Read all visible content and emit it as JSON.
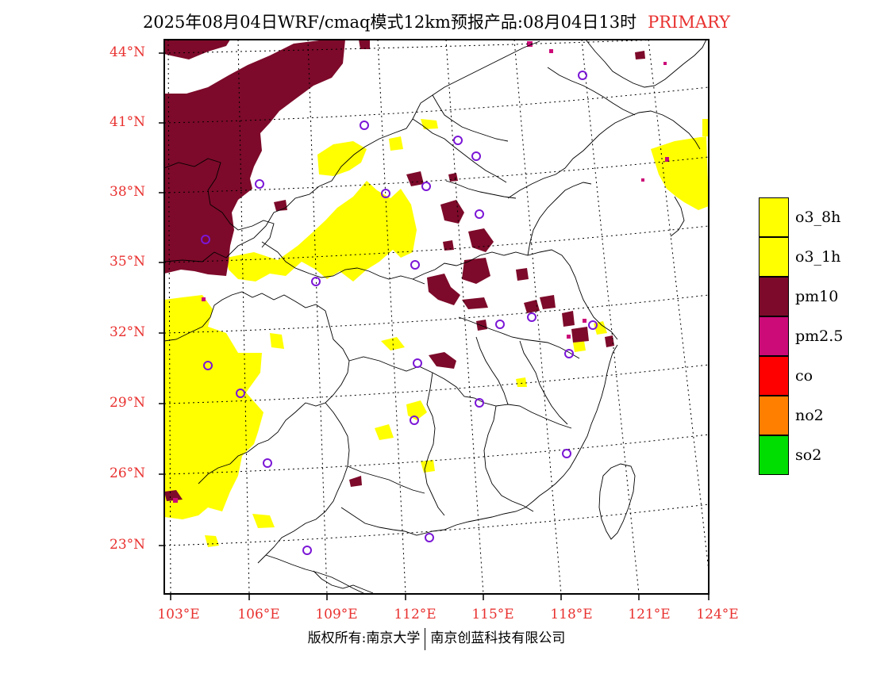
{
  "title": {
    "main": "2025年08月04日WRF/cmaq模式12km预报产品:08月04日13时",
    "tag": "PRIMARY"
  },
  "axes": {
    "lat_labels": [
      "44°N",
      "41°N",
      "38°N",
      "35°N",
      "32°N",
      "29°N",
      "26°N",
      "23°N"
    ],
    "lon_labels": [
      "103°E",
      "106°E",
      "109°E",
      "112°E",
      "115°E",
      "118°E",
      "121°E",
      "124°E"
    ]
  },
  "legend": [
    {
      "label": "o3_8h",
      "color": "#ffff00"
    },
    {
      "label": "o3_1h",
      "color": "#ffff00"
    },
    {
      "label": "pm10",
      "color": "#7d0a2a"
    },
    {
      "label": "pm2.5",
      "color": "#cc0a78"
    },
    {
      "label": "co",
      "color": "#ff0000"
    },
    {
      "label": "no2",
      "color": "#ff7f00"
    },
    {
      "label": "so2",
      "color": "#00dd00"
    }
  ],
  "colors": {
    "o3": "#ffff00",
    "pm10": "#7d0a2a",
    "pm25": "#cc0a78",
    "city_marker": "#7b16d6",
    "label_red": "#e8312f"
  },
  "footer": {
    "left": "版权所有:南京大学",
    "right": "南京创蓝科技有限公司"
  }
}
